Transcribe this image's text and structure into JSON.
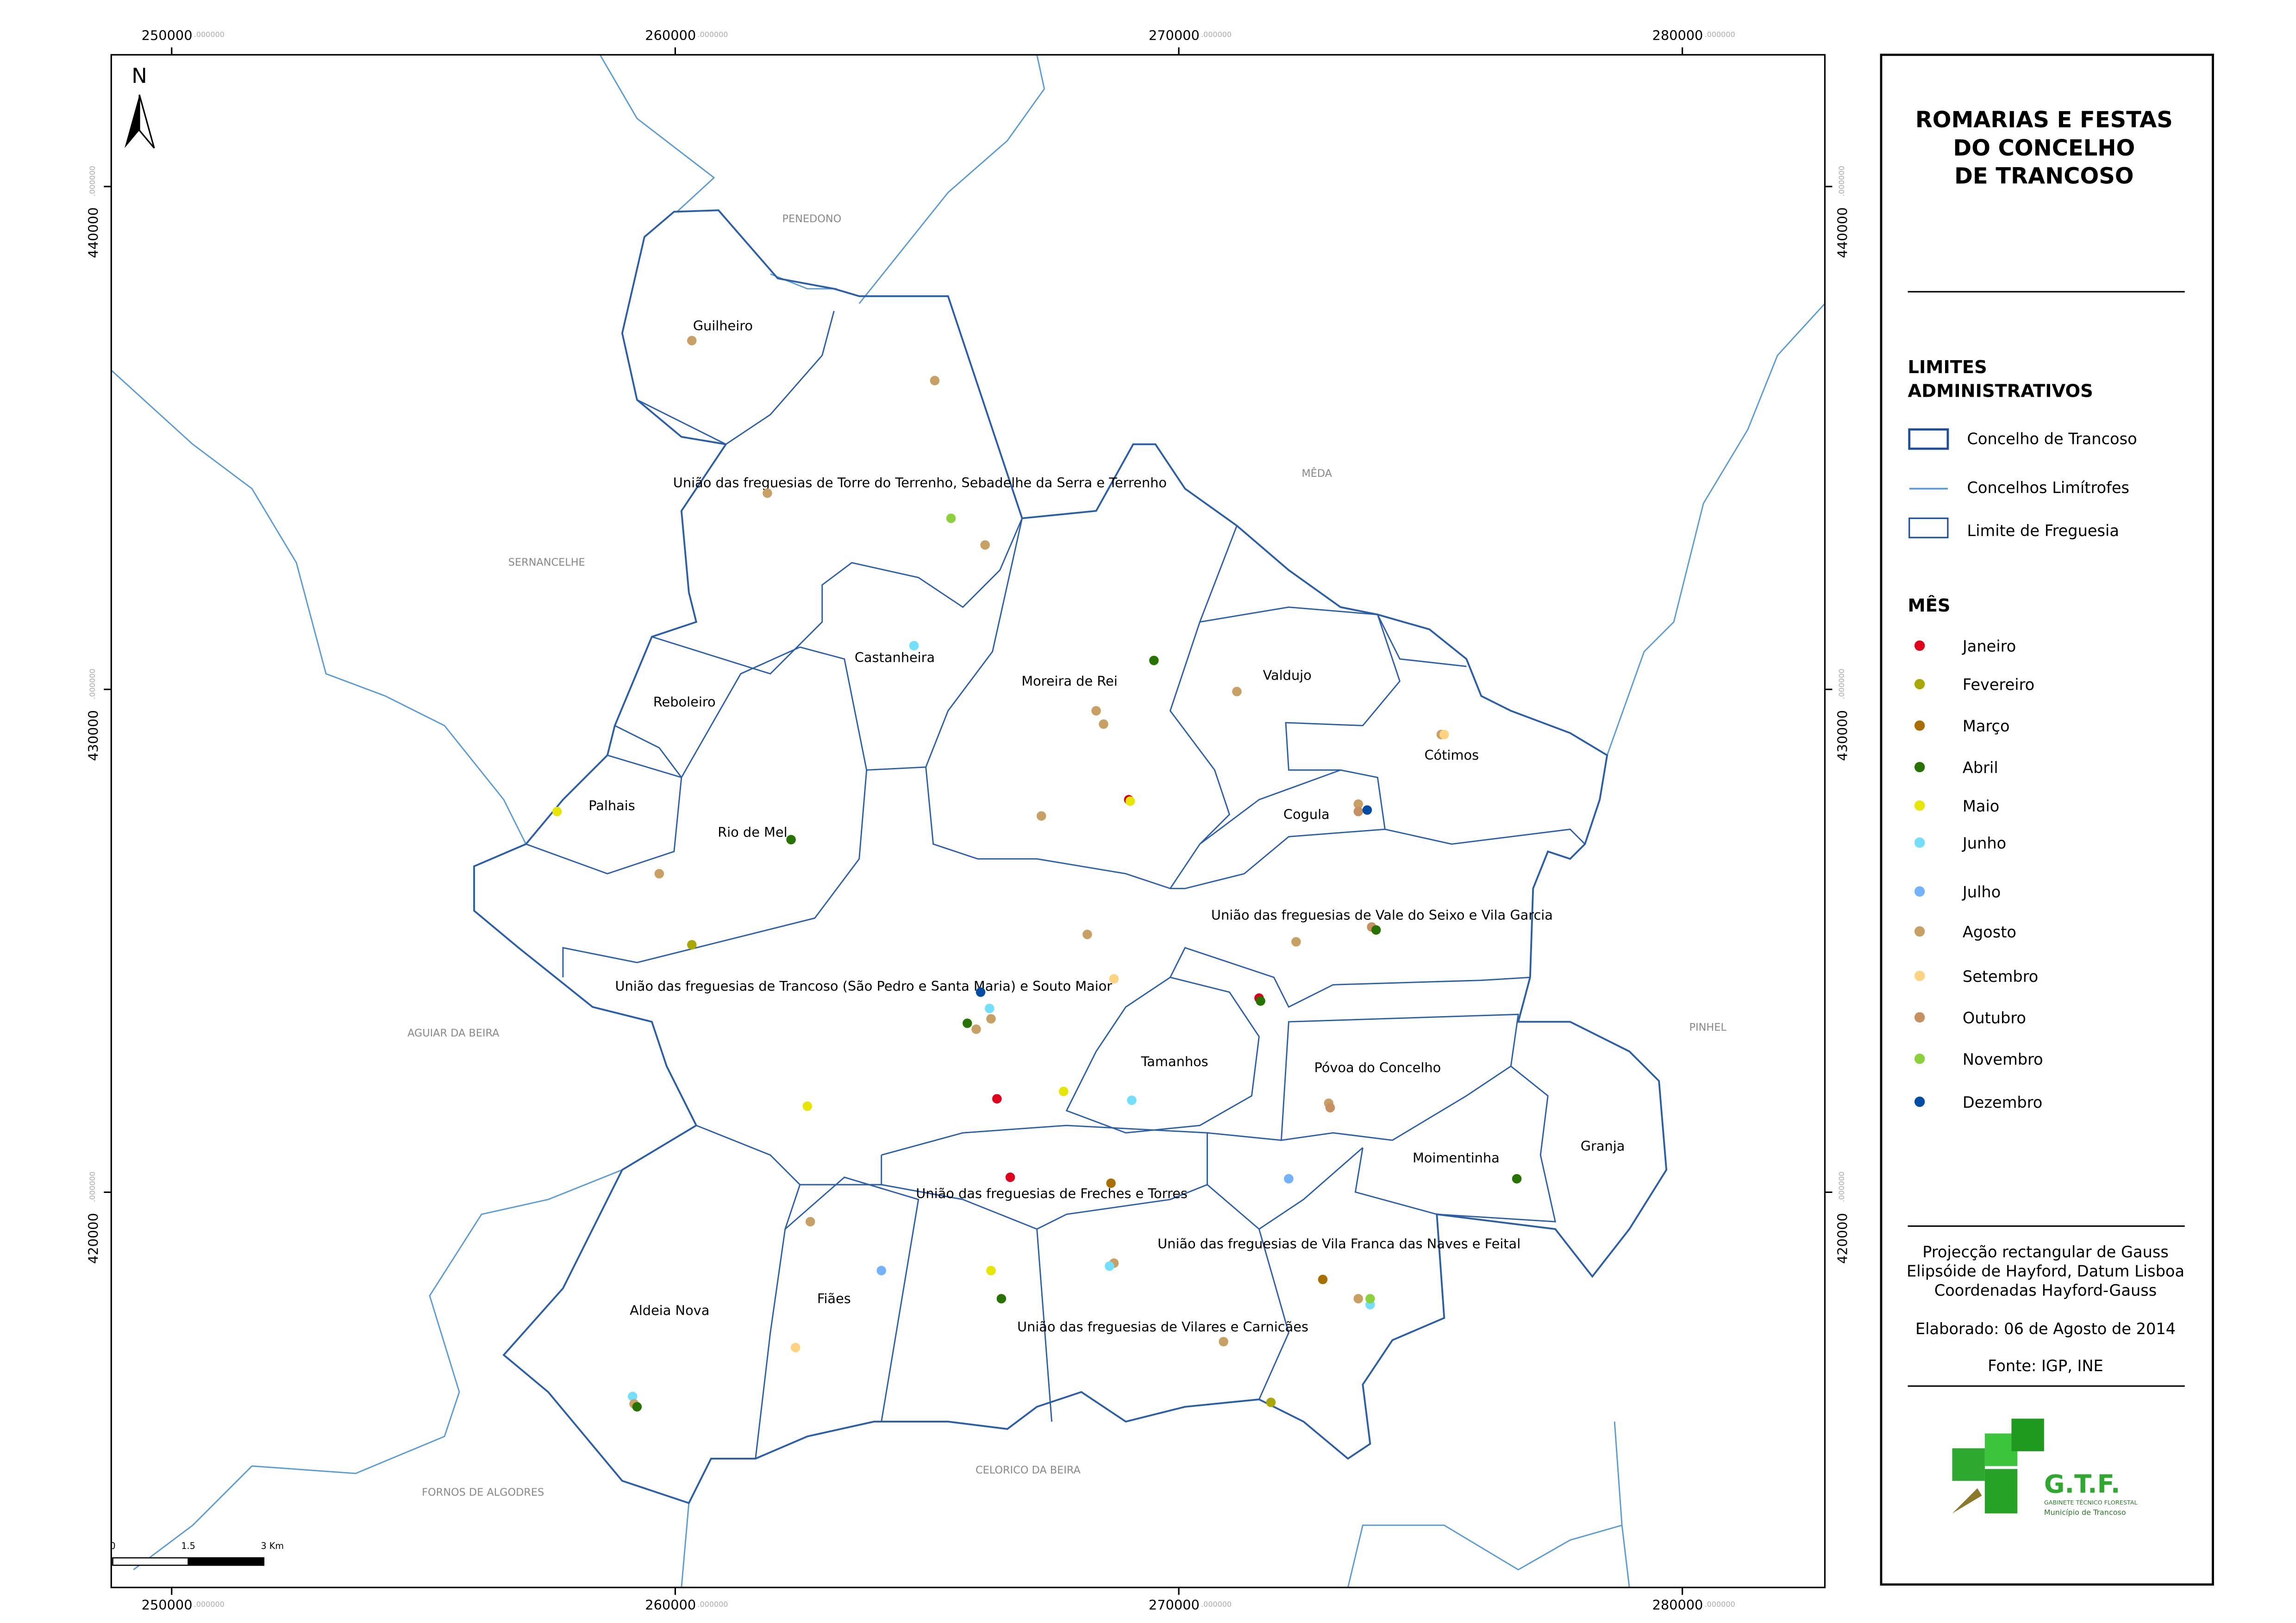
{
  "title": [
    "ROMARIAS E FESTAS",
    "DO CONCELHO",
    "DE TRANCOSO"
  ],
  "north": "N",
  "map": {
    "xlim": [
      248800,
      282830
    ],
    "ylim": [
      412140,
      442620
    ],
    "xticks": [
      250000,
      260000,
      270000,
      280000
    ],
    "yticks": [
      420000,
      430000,
      440000
    ],
    "tick_suffix": ".000000"
  },
  "parishes": [
    "Guilheiro",
    "União das freguesias de Torre do Terrenho, Sebadelhe da Serra e Terrenho",
    "Castanheira",
    "Moreira de Rei",
    "Valdujo",
    "Reboleiro",
    "Cótimos",
    "Palhais",
    "Cogula",
    "Rio de Mel",
    "União das freguesias de Vale do Seixo e Vila Garcia",
    "União das freguesias de Trancoso (São Pedro e Santa Maria) e Souto Maior",
    "Tamanhos",
    "Póvoa do Concelho",
    "Moimentinha",
    "Granja",
    "União das freguesias de Freches e Torres",
    "União das freguesias de Vila Franca das Naves e Feital",
    "Aldeia Nova",
    "Fiães",
    "União das freguesias de Vilares e Carnicães"
  ],
  "neighbors": [
    "PENEDONO",
    "MÊDA",
    "SERNANCELHE",
    "AGUIAR DA BEIRA",
    "PINHEL",
    "FORNOS DE ALGODRES",
    "CELORICO DA BEIRA"
  ],
  "scale_bar": [
    "0",
    "1.5",
    "3  Km"
  ],
  "legend": {
    "limits_title": [
      "LIMITES",
      "ADMINISTRATIVOS"
    ],
    "limits": [
      "Concelho de Trancoso",
      "Concelhos Limítrofes",
      "Limite de Freguesia"
    ],
    "month_title": "MÊS",
    "months": [
      {
        "name": "Janeiro",
        "color": "#e0001b"
      },
      {
        "name": "Fevereiro",
        "color": "#a8a800"
      },
      {
        "name": "Março",
        "color": "#a86e00"
      },
      {
        "name": "Abril",
        "color": "#267300"
      },
      {
        "name": "Maio",
        "color": "#e6e600"
      },
      {
        "name": "Junho",
        "color": "#73dfff"
      },
      {
        "name": "Julho",
        "color": "#73b2ff"
      },
      {
        "name": "Agosto",
        "color": "#c8a064"
      },
      {
        "name": "Setembro",
        "color": "#ffd37f"
      },
      {
        "name": "Outubro",
        "color": "#c89060"
      },
      {
        "name": "Novembro",
        "color": "#8bd13c"
      },
      {
        "name": "Dezembro",
        "color": "#004da8"
      }
    ]
  },
  "footer": {
    "projection": [
      "Projecção rectangular de Gauss",
      "Elipsóide de Hayford, Datum Lisboa",
      "Coordenadas Hayford-Gauss"
    ],
    "date": "Elaborado: 06 de Agosto de 2014",
    "source": "Fonte: IGP, INE"
  },
  "logo": {
    "name": "G.T.F.",
    "subtitle": "GABINETE TÉCNICO FLORESTAL",
    "municipality": "Município de Trancoso"
  }
}
